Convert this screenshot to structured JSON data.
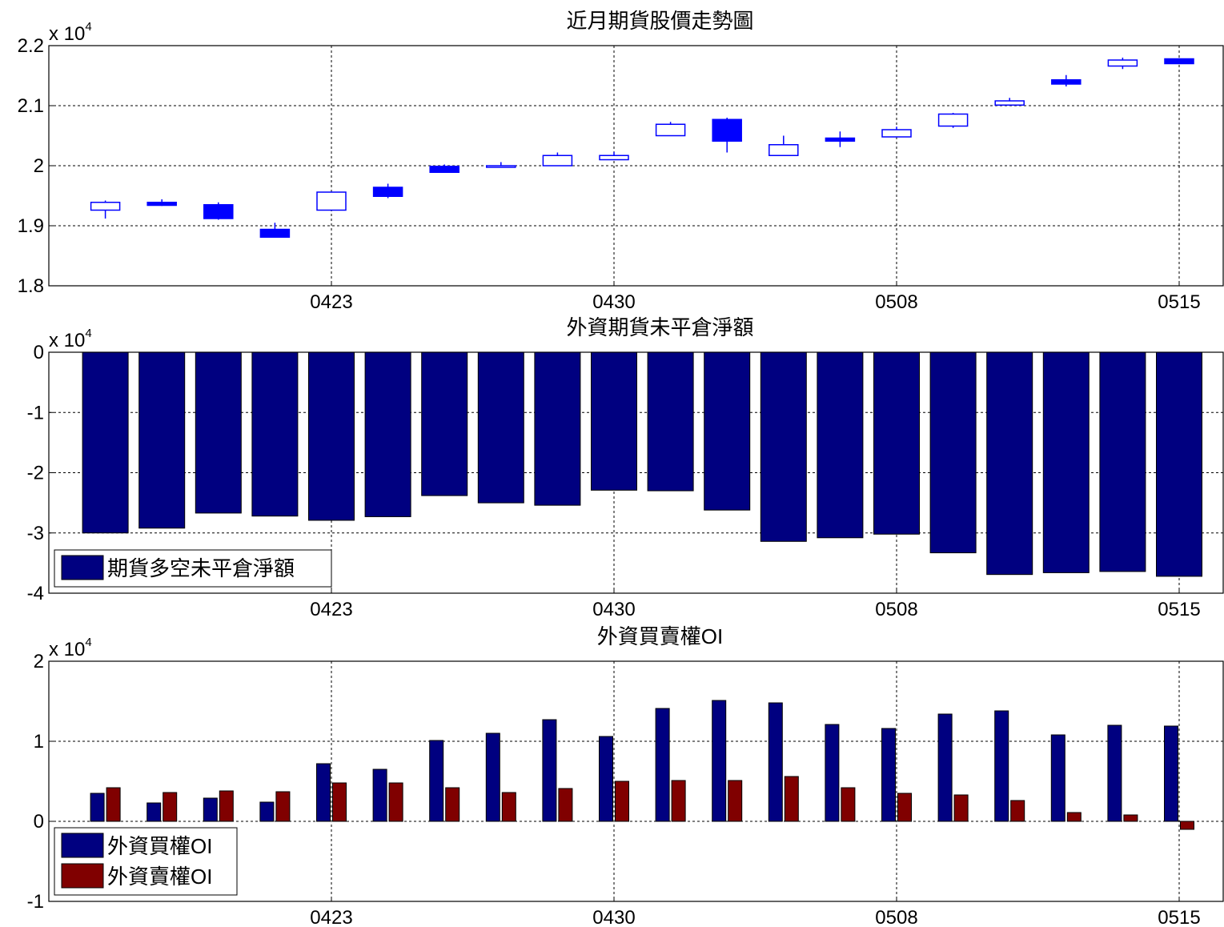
{
  "charts": [
    {
      "type": "candlestick",
      "title": "近月期貨股價走勢圖",
      "exponent_label": "x 10",
      "exponent_power": "4",
      "xticks": [
        "0423",
        "0430",
        "0508",
        "0515"
      ],
      "xtick_index": [
        5,
        10,
        15,
        20
      ],
      "yticks": [
        "1.8",
        "1.9",
        "2",
        "2.1",
        "2.2"
      ],
      "ylim": [
        1.8,
        2.2
      ],
      "grid": true,
      "colors": {
        "bull": "#0000ff",
        "bear": "#0000ff"
      },
      "ohlc": [
        {
          "o": 1.926,
          "h": 1.942,
          "l": 1.912,
          "c": 1.939
        },
        {
          "o": 1.939,
          "h": 1.944,
          "l": 1.933,
          "c": 1.934
        },
        {
          "o": 1.935,
          "h": 1.939,
          "l": 1.91,
          "c": 1.912
        },
        {
          "o": 1.894,
          "h": 1.905,
          "l": 1.88,
          "c": 1.881
        },
        {
          "o": 1.926,
          "h": 1.957,
          "l": 1.926,
          "c": 1.956
        },
        {
          "o": 1.964,
          "h": 1.97,
          "l": 1.946,
          "c": 1.949
        },
        {
          "o": 1.999,
          "h": 2.002,
          "l": 1.988,
          "c": 1.989
        },
        {
          "o": 1.998,
          "h": 2.006,
          "l": 1.998,
          "c": 2.0
        },
        {
          "o": 2.0,
          "h": 2.022,
          "l": 2.0,
          "c": 2.017
        },
        {
          "o": 2.01,
          "h": 2.023,
          "l": 2.01,
          "c": 2.017
        },
        {
          "o": 2.05,
          "h": 2.073,
          "l": 2.05,
          "c": 2.069
        },
        {
          "o": 2.077,
          "h": 2.08,
          "l": 2.022,
          "c": 2.041
        },
        {
          "o": 2.017,
          "h": 2.05,
          "l": 2.017,
          "c": 2.035
        },
        {
          "o": 2.046,
          "h": 2.057,
          "l": 2.031,
          "c": 2.041
        },
        {
          "o": 2.048,
          "h": 2.065,
          "l": 2.048,
          "c": 2.06
        },
        {
          "o": 2.066,
          "h": 2.088,
          "l": 2.063,
          "c": 2.086
        },
        {
          "o": 2.101,
          "h": 2.113,
          "l": 2.101,
          "c": 2.108
        },
        {
          "o": 2.143,
          "h": 2.151,
          "l": 2.132,
          "c": 2.136
        },
        {
          "o": 2.166,
          "h": 2.18,
          "l": 2.161,
          "c": 2.176
        },
        {
          "o": 2.178,
          "h": 2.179,
          "l": 2.17,
          "c": 2.17
        }
      ]
    },
    {
      "type": "bar",
      "title": "外資期貨未平倉淨額",
      "exponent_label": "x 10",
      "exponent_power": "4",
      "xticks": [
        "0423",
        "0430",
        "0508",
        "0515"
      ],
      "xtick_index": [
        5,
        10,
        15,
        20
      ],
      "yticks": [
        "-4",
        "-3",
        "-2",
        "-1",
        "0"
      ],
      "ylim": [
        -4,
        0
      ],
      "grid": true,
      "legend_position": "bottom-left",
      "series": [
        {
          "name": "期貨多空未平倉淨額",
          "color": "#000080",
          "values": [
            -3.0,
            -2.92,
            -2.67,
            -2.72,
            -2.79,
            -2.73,
            -2.38,
            -2.5,
            -2.54,
            -2.29,
            -2.3,
            -2.62,
            -3.14,
            -3.08,
            -3.02,
            -3.33,
            -3.69,
            -3.66,
            -3.64,
            -3.72
          ]
        }
      ]
    },
    {
      "type": "bar",
      "title": "外資買賣權OI",
      "exponent_label": "x 10",
      "exponent_power": "4",
      "xticks": [
        "0423",
        "0430",
        "0508",
        "0515"
      ],
      "xtick_index": [
        5,
        10,
        15,
        20
      ],
      "yticks": [
        "-1",
        "0",
        "1",
        "2"
      ],
      "ylim": [
        -1,
        2
      ],
      "grid": true,
      "legend_position": "bottom-left",
      "series": [
        {
          "name": "外資買權OI",
          "color": "#000080",
          "values": [
            0.35,
            0.23,
            0.29,
            0.24,
            0.72,
            0.65,
            1.01,
            1.1,
            1.27,
            1.06,
            1.41,
            1.51,
            1.48,
            1.21,
            1.16,
            1.34,
            1.38,
            1.08,
            1.2,
            1.19
          ]
        },
        {
          "name": "外資賣權OI",
          "color": "#800000",
          "values": [
            0.42,
            0.36,
            0.38,
            0.37,
            0.48,
            0.48,
            0.42,
            0.36,
            0.41,
            0.5,
            0.51,
            0.51,
            0.56,
            0.42,
            0.35,
            0.33,
            0.26,
            0.11,
            0.08,
            -0.1
          ]
        }
      ]
    }
  ]
}
